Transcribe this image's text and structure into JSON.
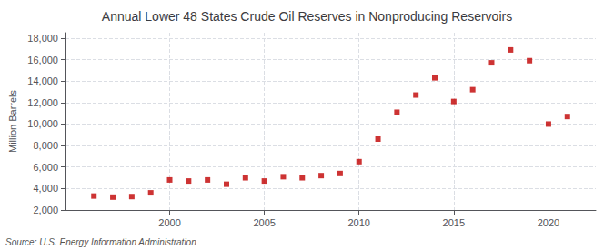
{
  "chart_data": {
    "type": "scatter",
    "title": "Annual Lower 48 States Crude Oil Reserves in Nonproducing Reservoirs",
    "ylabel": "Million Barrels",
    "annotations": [
      "Source: U.S. Energy Information Administration"
    ],
    "x": [
      1996,
      1997,
      1998,
      1999,
      2000,
      2001,
      2002,
      2003,
      2004,
      2005,
      2006,
      2007,
      2008,
      2009,
      2010,
      2011,
      2012,
      2013,
      2014,
      2015,
      2016,
      2017,
      2018,
      2019,
      2020,
      2021
    ],
    "values": [
      3300,
      3200,
      3250,
      3600,
      4800,
      4700,
      4800,
      4400,
      5000,
      4700,
      5100,
      5000,
      5200,
      5400,
      6500,
      8600,
      11100,
      12700,
      14300,
      12100,
      13200,
      15700,
      16900,
      15900,
      10000,
      10700
    ],
    "color": "#c00000",
    "marker": "square",
    "xlim": [
      1994.5,
      2022.5
    ],
    "xticks": [
      2000,
      2005,
      2010,
      2015,
      2020
    ],
    "ylim": [
      2000,
      18500
    ],
    "yticks": [
      {
        "value": 2000,
        "label": "2,000"
      },
      {
        "value": 4000,
        "label": "4,000"
      },
      {
        "value": 6000,
        "label": "6,000"
      },
      {
        "value": 8000,
        "label": "8,000"
      },
      {
        "value": 10000,
        "label": "10,000"
      },
      {
        "value": 12000,
        "label": "12,000"
      },
      {
        "value": 14000,
        "label": "14,000"
      },
      {
        "value": 16000,
        "label": "16,000"
      },
      {
        "value": 18000,
        "label": "18,000"
      }
    ],
    "grid": true
  }
}
